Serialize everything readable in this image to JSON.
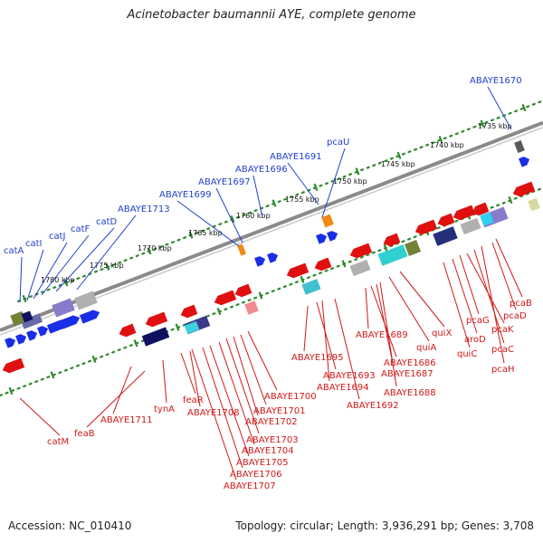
{
  "title": "Acinetobacter baumannii AYE, complete genome",
  "accession": "Accession: NC_010410",
  "summary": "Topology: circular; Length: 3,936,291 bp; Genes: 3,708",
  "colors": {
    "plus_label": "#1f3fcf",
    "minus_label": "#d01818",
    "backbone": "#8a8a8a",
    "ruler_dots": "#2e8b2e"
  },
  "ruler_labels": [
    "1735 kbp",
    "1740 kbp",
    "1745 kbp",
    "1750 kbp",
    "1755 kbp",
    "1760 kbp",
    "1765 kbp",
    "1770 kbp",
    "1775 kbp",
    "1780 kbp"
  ],
  "plus_genes": [
    "ABAYE1670",
    "pcaU",
    "ABAYE1691",
    "ABAYE1696",
    "ABAYE1697",
    "ABAYE1699",
    "ABAYE1713",
    "catD",
    "catF",
    "catJ",
    "catI",
    "catA"
  ],
  "minus_genes": [
    "catM",
    "feaB",
    "ABAYE1711",
    "tynA",
    "feaR",
    "ABAYE1708",
    "ABAYE1707",
    "ABAYE1706",
    "ABAYE1705",
    "ABAYE1704",
    "ABAYE1703",
    "ABAYE1702",
    "ABAYE1701",
    "ABAYE1700",
    "ABAYE1695",
    "ABAYE1693",
    "ABAYE1694",
    "ABAYE1692",
    "ABAYE1689",
    "ABAYE1686",
    "ABAYE1687",
    "ABAYE1688",
    "quiA",
    "quiX",
    "quiC",
    "aroD",
    "pcaG",
    "pcaK",
    "pcaC",
    "pcaH",
    "pcaD",
    "pcaB"
  ]
}
